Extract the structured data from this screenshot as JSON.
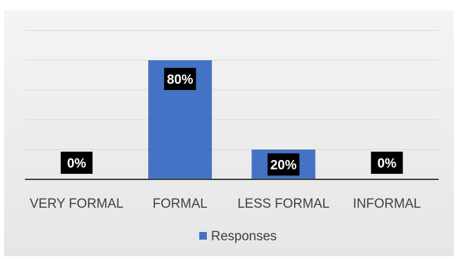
{
  "chart_data": {
    "type": "bar",
    "categories": [
      "VERY FORMAL",
      "FORMAL",
      "LESS FORMAL",
      "INFORMAL"
    ],
    "series": [
      {
        "name": "Responses",
        "values": [
          0,
          80,
          20,
          0
        ],
        "labels": [
          "0%",
          "80%",
          "20%",
          "0%"
        ],
        "color": "#4472c4"
      }
    ],
    "title": "",
    "xlabel": "",
    "ylabel": "",
    "ylim": [
      0,
      100
    ],
    "y_gridline_step": 20,
    "y_tick_labels_shown": false,
    "grid": true,
    "legend_position": "bottom",
    "data_label_style": {
      "background": "#000000",
      "color": "#ffffff"
    },
    "colors": {
      "background": "#efefef",
      "gridline": "#d9d9d9",
      "axis": "#404040",
      "text": "#404040"
    }
  }
}
